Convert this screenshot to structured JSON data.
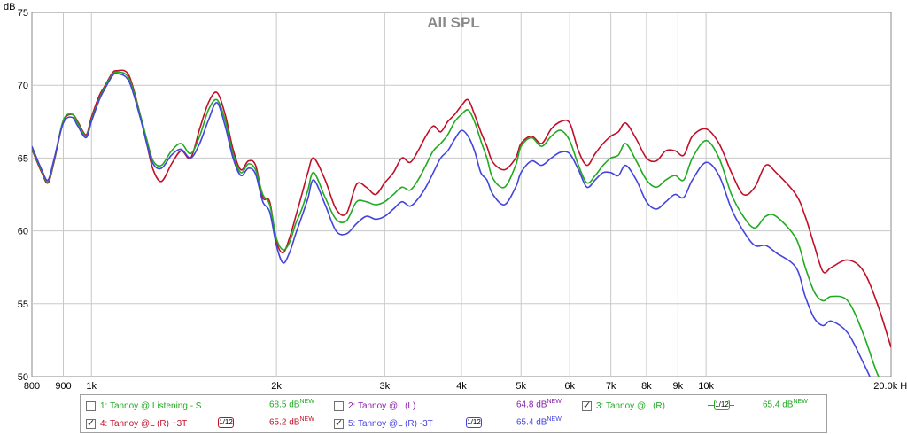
{
  "chart_data": {
    "type": "line",
    "title": "All SPL",
    "ylabel": "dB",
    "xlabel": "",
    "x_scale": "log",
    "xlim": [
      800,
      20000
    ],
    "ylim": [
      50,
      75
    ],
    "x_ticks": [
      {
        "value": 800,
        "label": "800"
      },
      {
        "value": 900,
        "label": "900"
      },
      {
        "value": 1000,
        "label": "1k"
      },
      {
        "value": 2000,
        "label": "2k"
      },
      {
        "value": 3000,
        "label": "3k"
      },
      {
        "value": 4000,
        "label": "4k"
      },
      {
        "value": 5000,
        "label": "5k"
      },
      {
        "value": 6000,
        "label": "6k"
      },
      {
        "value": 7000,
        "label": "7k"
      },
      {
        "value": 8000,
        "label": "8k"
      },
      {
        "value": 9000,
        "label": "9k"
      },
      {
        "value": 10000,
        "label": "10k"
      },
      {
        "value": 20000,
        "label": "20.0k Hz"
      }
    ],
    "y_ticks": [
      {
        "value": 75,
        "label": "75"
      },
      {
        "value": 70,
        "label": "70"
      },
      {
        "value": 65,
        "label": "65"
      },
      {
        "value": 60,
        "label": "60"
      },
      {
        "value": 55,
        "label": "55"
      },
      {
        "value": 50,
        "label": "50"
      }
    ],
    "grid": true,
    "series": [
      {
        "name": "4: Tannoy @L (R) +3T",
        "color": "#c01028",
        "x": [
          800,
          830,
          850,
          870,
          900,
          930,
          950,
          980,
          1000,
          1030,
          1050,
          1080,
          1100,
          1150,
          1200,
          1230,
          1260,
          1300,
          1350,
          1400,
          1450,
          1500,
          1550,
          1600,
          1650,
          1700,
          1750,
          1800,
          1850,
          1900,
          1950,
          2000,
          2050,
          2100,
          2150,
          2200,
          2250,
          2300,
          2400,
          2500,
          2600,
          2700,
          2800,
          2900,
          3000,
          3100,
          3200,
          3300,
          3400,
          3500,
          3600,
          3700,
          3800,
          3900,
          4000,
          4100,
          4200,
          4300,
          4400,
          4500,
          4700,
          4900,
          5000,
          5200,
          5400,
          5600,
          5800,
          6000,
          6200,
          6400,
          6600,
          6800,
          7000,
          7200,
          7400,
          7700,
          8000,
          8300,
          8600,
          8900,
          9200,
          9500,
          10000,
          10500,
          11000,
          11500,
          12000,
          12500,
          13000,
          14000,
          14500,
          15000,
          15500,
          16000,
          17000,
          18000,
          19000,
          20000
        ],
        "values": [
          65.6,
          64.0,
          63.3,
          64.8,
          67.5,
          68.0,
          67.5,
          66.6,
          67.8,
          69.3,
          69.9,
          70.8,
          71.0,
          70.7,
          68.0,
          66.0,
          64.2,
          63.4,
          64.6,
          65.5,
          65.0,
          67.0,
          68.8,
          69.5,
          68.0,
          65.6,
          64.2,
          64.8,
          64.5,
          62.3,
          62.0,
          59.3,
          58.5,
          59.5,
          61.0,
          62.5,
          64.0,
          65.0,
          63.5,
          61.5,
          61.2,
          63.2,
          63.0,
          62.5,
          63.3,
          64.0,
          65.0,
          64.7,
          65.5,
          66.5,
          67.2,
          66.8,
          67.5,
          68.0,
          68.6,
          69.0,
          68.0,
          66.8,
          65.8,
          64.7,
          64.2,
          65.0,
          66.0,
          66.5,
          66.0,
          67.0,
          67.5,
          67.4,
          65.5,
          64.5,
          65.3,
          66.0,
          66.5,
          66.8,
          67.4,
          66.3,
          65.0,
          64.8,
          65.5,
          65.5,
          65.2,
          66.5,
          67.0,
          66.0,
          64.0,
          62.5,
          63.0,
          64.5,
          64.0,
          62.5,
          61.0,
          59.0,
          57.2,
          57.5,
          58.0,
          57.3,
          55.0,
          52.0
        ]
      },
      {
        "name": "3: Tannoy @L (R)",
        "color": "#22aa22",
        "x": [
          800,
          830,
          850,
          870,
          900,
          930,
          950,
          980,
          1000,
          1030,
          1050,
          1080,
          1100,
          1150,
          1200,
          1230,
          1260,
          1300,
          1350,
          1400,
          1450,
          1500,
          1550,
          1600,
          1650,
          1700,
          1750,
          1800,
          1850,
          1900,
          1950,
          2000,
          2050,
          2100,
          2150,
          2200,
          2250,
          2300,
          2400,
          2500,
          2600,
          2700,
          2800,
          2900,
          3000,
          3100,
          3200,
          3300,
          3400,
          3500,
          3600,
          3700,
          3800,
          3900,
          4000,
          4100,
          4200,
          4300,
          4400,
          4500,
          4700,
          4900,
          5000,
          5200,
          5400,
          5600,
          5800,
          6000,
          6200,
          6400,
          6600,
          6800,
          7000,
          7200,
          7400,
          7700,
          8000,
          8300,
          8600,
          8900,
          9200,
          9500,
          10000,
          10500,
          11000,
          11500,
          12000,
          12500,
          13000,
          14000,
          14500,
          15000,
          15500,
          16000,
          17000,
          18000,
          19000,
          20000
        ],
        "values": [
          65.7,
          64.1,
          63.4,
          64.9,
          67.6,
          68.0,
          67.4,
          66.5,
          67.6,
          69.1,
          69.8,
          70.7,
          70.9,
          70.5,
          68.0,
          66.3,
          64.8,
          64.5,
          65.5,
          66.0,
          65.3,
          66.5,
          68.3,
          69.0,
          67.6,
          65.3,
          64.0,
          64.6,
          64.2,
          62.5,
          61.8,
          59.5,
          58.7,
          59.2,
          60.5,
          61.5,
          62.8,
          64.0,
          62.3,
          60.8,
          60.7,
          62.0,
          62.0,
          61.8,
          62.0,
          62.5,
          63.0,
          62.8,
          63.5,
          64.5,
          65.5,
          66.0,
          66.6,
          67.5,
          68.0,
          68.3,
          67.5,
          66.2,
          65.0,
          63.6,
          63.0,
          64.5,
          65.8,
          66.4,
          65.8,
          66.5,
          66.9,
          66.2,
          64.5,
          63.3,
          63.8,
          64.5,
          65.0,
          65.2,
          66.0,
          64.8,
          63.5,
          63.0,
          63.5,
          63.8,
          63.5,
          65.0,
          66.2,
          65.0,
          62.5,
          61.0,
          60.2,
          61.0,
          61.0,
          59.5,
          57.5,
          55.8,
          55.2,
          55.5,
          55.2,
          53.0,
          50.2,
          48.5
        ]
      },
      {
        "name": "5: Tannoy @L (R) -3T",
        "color": "#4444dd",
        "x": [
          800,
          830,
          850,
          870,
          900,
          930,
          950,
          980,
          1000,
          1030,
          1050,
          1080,
          1100,
          1150,
          1200,
          1230,
          1260,
          1300,
          1350,
          1400,
          1450,
          1500,
          1550,
          1600,
          1650,
          1700,
          1750,
          1800,
          1850,
          1900,
          1950,
          2000,
          2050,
          2100,
          2150,
          2200,
          2250,
          2300,
          2400,
          2500,
          2600,
          2700,
          2800,
          2900,
          3000,
          3100,
          3200,
          3300,
          3400,
          3500,
          3600,
          3700,
          3800,
          3900,
          4000,
          4100,
          4200,
          4300,
          4400,
          4500,
          4700,
          4900,
          5000,
          5200,
          5400,
          5600,
          5800,
          6000,
          6200,
          6400,
          6600,
          6800,
          7000,
          7200,
          7400,
          7700,
          8000,
          8300,
          8600,
          8900,
          9200,
          9500,
          10000,
          10500,
          11000,
          11500,
          12000,
          12500,
          13000,
          14000,
          14500,
          15000,
          15500,
          16000,
          17000,
          18000,
          19000,
          20000
        ],
        "values": [
          65.8,
          64.2,
          63.5,
          65.0,
          67.4,
          67.8,
          67.2,
          66.4,
          67.5,
          69.0,
          69.7,
          70.6,
          70.8,
          70.3,
          67.8,
          66.0,
          64.6,
          64.3,
          65.2,
          65.6,
          65.0,
          66.0,
          67.6,
          68.8,
          67.2,
          65.0,
          63.8,
          64.3,
          63.9,
          62.0,
          61.3,
          59.0,
          57.8,
          58.5,
          59.8,
          61.0,
          62.2,
          63.5,
          61.8,
          60.0,
          59.8,
          60.5,
          61.0,
          60.8,
          61.0,
          61.5,
          62.0,
          61.7,
          62.2,
          63.0,
          64.0,
          65.0,
          65.5,
          66.3,
          66.9,
          66.5,
          65.5,
          64.0,
          63.5,
          62.5,
          61.8,
          63.0,
          64.0,
          64.8,
          64.5,
          65.0,
          65.4,
          65.3,
          64.2,
          63.0,
          63.5,
          64.0,
          64.0,
          63.8,
          64.5,
          63.5,
          62.0,
          61.5,
          62.0,
          62.5,
          62.3,
          63.5,
          64.7,
          63.8,
          61.5,
          60.0,
          59.0,
          59.0,
          58.5,
          57.5,
          55.5,
          54.0,
          53.5,
          53.8,
          53.0,
          51.0,
          49.0,
          48.0
        ]
      }
    ]
  },
  "legend": {
    "items": [
      {
        "label": "1: Tannoy @ Listening - S",
        "value": "68.5 dB",
        "new": "NEW",
        "checked": false,
        "color": "#22aa22"
      },
      {
        "label": "2: Tannoy @L (L)",
        "value": "64.8 dB",
        "new": "NEW",
        "checked": false,
        "color": "#8822aa"
      },
      {
        "label": "3: Tannoy @L (R)",
        "value": "65.4 dB",
        "new": "NEW",
        "checked": true,
        "color": "#22aa22",
        "smooth": "1/12"
      },
      {
        "label": "4: Tannoy @L (R) +3T",
        "value": "65.2 dB",
        "new": "NEW",
        "checked": true,
        "color": "#c01028",
        "smooth": "1/12"
      },
      {
        "label": "5: Tannoy @L (R) -3T",
        "value": "65.4 dB",
        "new": "NEW",
        "checked": true,
        "color": "#4444dd",
        "smooth": "1/12"
      }
    ]
  }
}
